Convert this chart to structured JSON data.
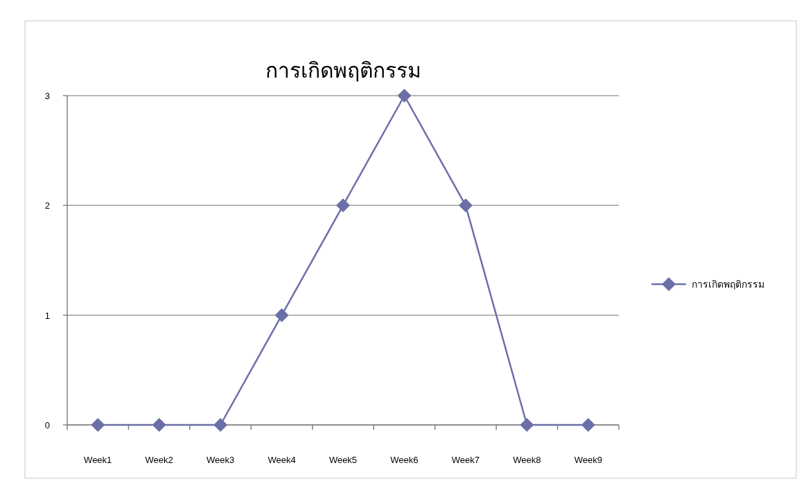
{
  "chart_data": {
    "type": "line",
    "title": "การเกิดพฤติกรรม",
    "categories": [
      "Week1",
      "Week2",
      "Week3",
      "Week4",
      "Week5",
      "Week6",
      "Week7",
      "Week8",
      "Week9"
    ],
    "series": [
      {
        "name": "การเกิดพฤติกรรม",
        "color": "#6b6fa8",
        "values": [
          0,
          0,
          0,
          1,
          2,
          3,
          2,
          0,
          0
        ]
      }
    ],
    "ylim": [
      0,
      3
    ],
    "yticks": [
      0,
      1,
      2,
      3
    ],
    "grid": "y",
    "legend": "right",
    "marker": "diamond",
    "line_style": "solid"
  }
}
